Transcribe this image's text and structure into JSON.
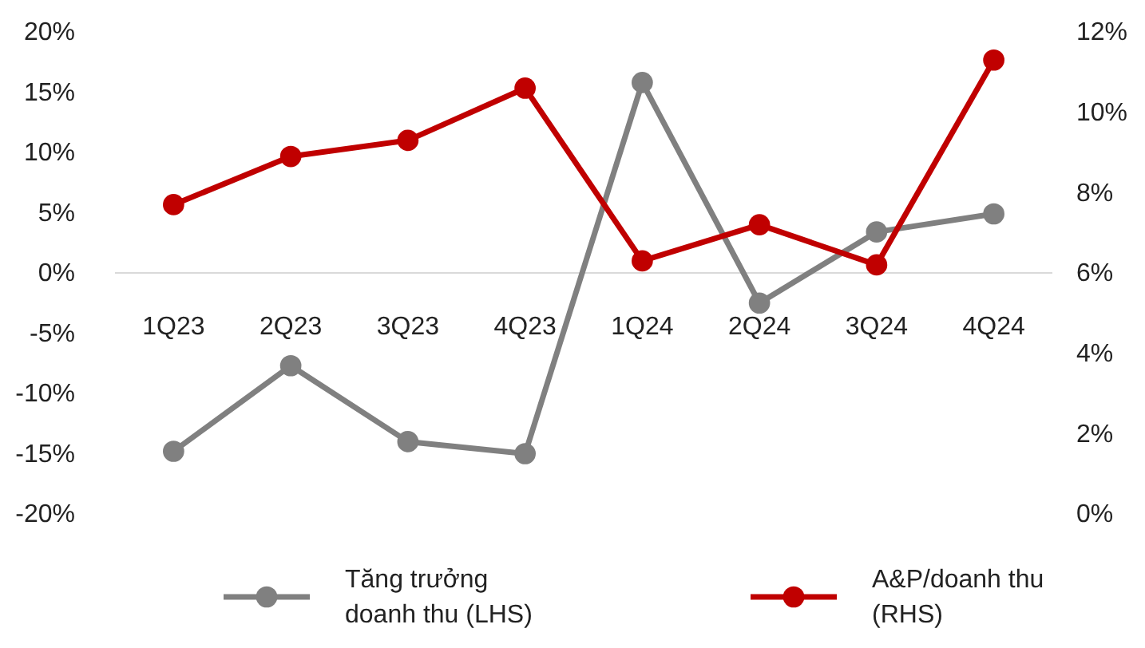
{
  "chart_data": {
    "type": "line",
    "categories": [
      "1Q23",
      "2Q23",
      "3Q23",
      "4Q23",
      "1Q24",
      "2Q24",
      "3Q24",
      "4Q24"
    ],
    "series": [
      {
        "name": "Tăng trưởng doanh thu (LHS)",
        "color": "#808080",
        "values": [
          -14.8,
          -7.7,
          -14.0,
          -15.0,
          15.8,
          -2.5,
          3.4,
          4.9
        ]
      },
      {
        "name": "A&P/doanh thu (RHS)",
        "color": "#c00000",
        "axis": "y2",
        "values": [
          7.7,
          8.9,
          9.3,
          10.6,
          6.3,
          7.2,
          6.2,
          11.3
        ]
      }
    ],
    "ylim": [
      -20,
      20
    ],
    "yticks": [
      {
        "value": -20,
        "label": "-20%"
      },
      {
        "value": -15,
        "label": "-15%"
      },
      {
        "value": -10,
        "label": "-10%"
      },
      {
        "value": -5,
        "label": "-5%"
      },
      {
        "value": 0,
        "label": "0%"
      },
      {
        "value": 5,
        "label": "5%"
      },
      {
        "value": 10,
        "label": "10%"
      },
      {
        "value": 15,
        "label": "15%"
      },
      {
        "value": 20,
        "label": "20%"
      }
    ],
    "y2lim": [
      0,
      12
    ],
    "y2ticks": [
      {
        "value": 0,
        "label": "0%"
      },
      {
        "value": 2,
        "label": "2%"
      },
      {
        "value": 4,
        "label": "4%"
      },
      {
        "value": 6,
        "label": "6%"
      },
      {
        "value": 8,
        "label": "8%"
      },
      {
        "value": 10,
        "label": "10%"
      },
      {
        "value": 12,
        "label": "12%"
      }
    ],
    "marker": "circle",
    "legend": "bottom"
  }
}
